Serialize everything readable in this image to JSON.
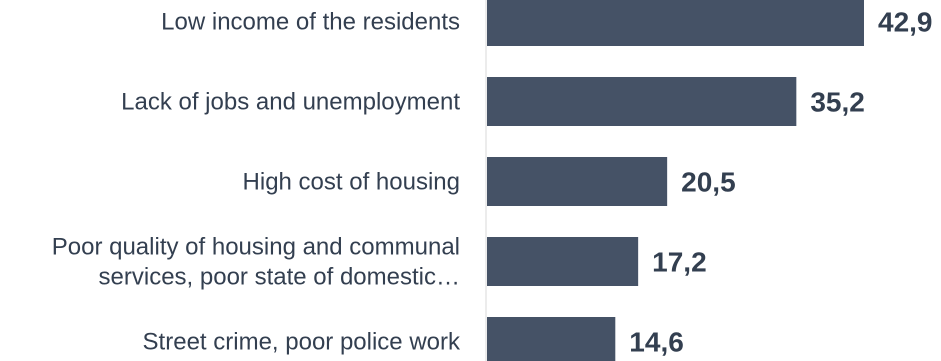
{
  "chart_data": {
    "type": "bar",
    "orientation": "horizontal",
    "categories": [
      [
        "Low income of the residents"
      ],
      [
        "Lack of jobs and unemployment"
      ],
      [
        "High cost of housing"
      ],
      [
        "Poor quality of housing and communal",
        "services, poor state of domestic…"
      ],
      [
        "Street crime, poor police work"
      ]
    ],
    "values": [
      42.9,
      35.2,
      20.5,
      17.2,
      14.6
    ],
    "value_labels": [
      "42,9",
      "35,2",
      "20,5",
      "17,2",
      "14,6"
    ],
    "title": "",
    "xlabel": "",
    "ylabel": "",
    "grid": false,
    "colors": {
      "bar": "#455266",
      "axis": "#d9d9d9",
      "category_text": "#333f50",
      "value_text": "#333f50"
    }
  }
}
